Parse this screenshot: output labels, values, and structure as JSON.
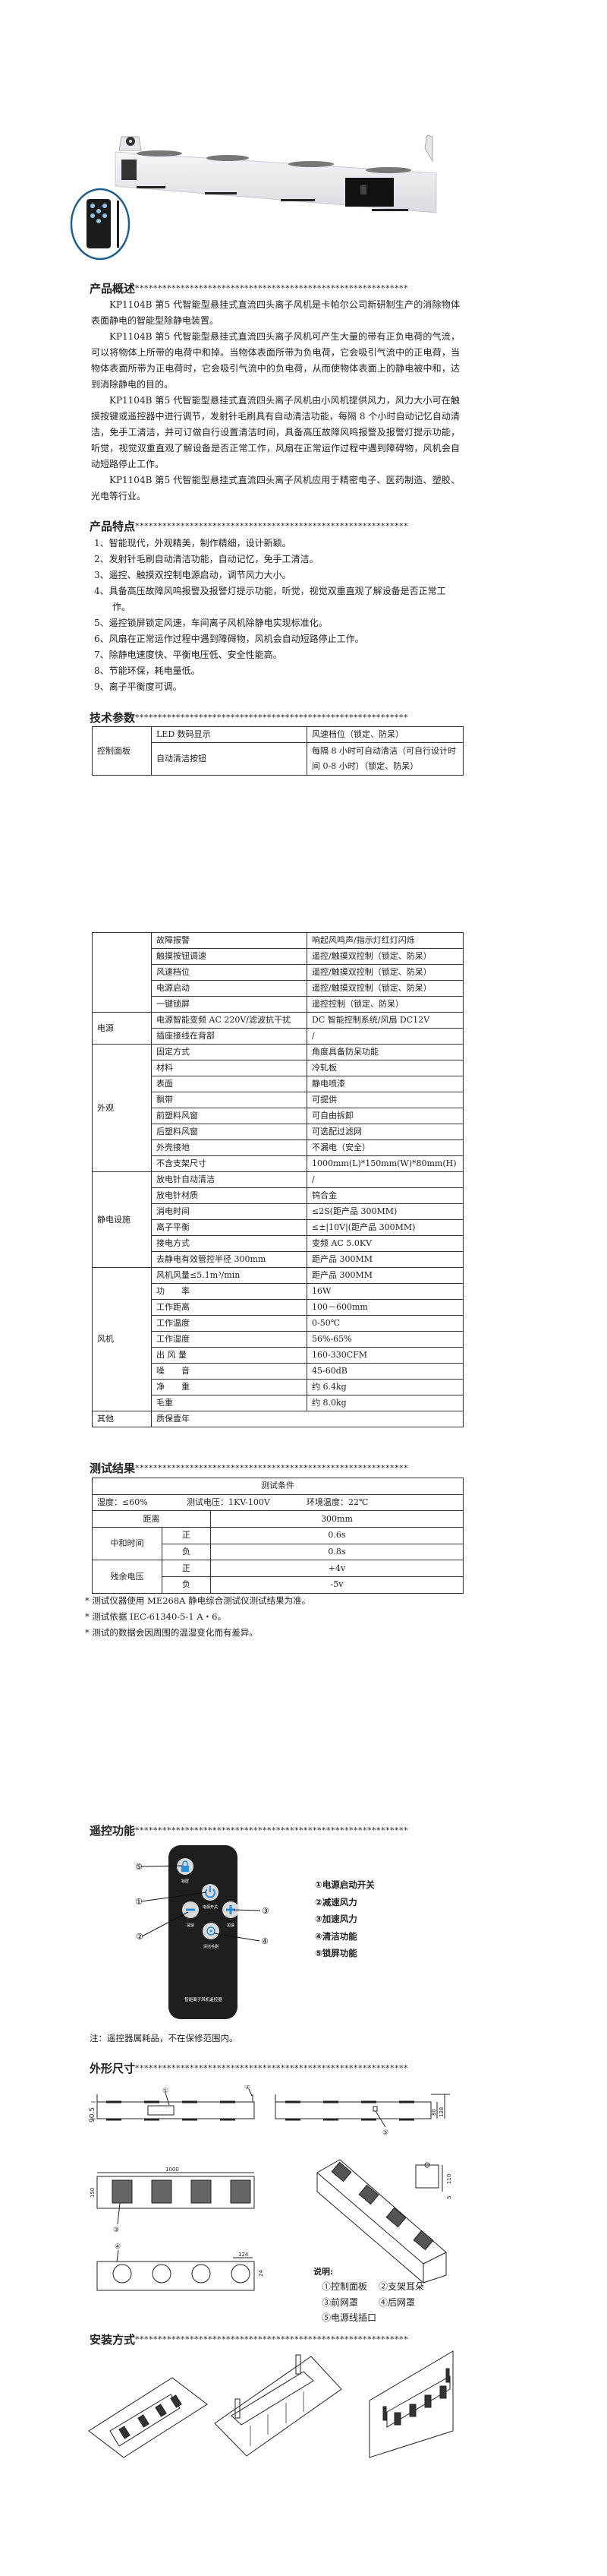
{
  "overview": {
    "title": "产品概述",
    "stars": "************************************************************",
    "paragraphs": [
      "KP1104B 第5 代智能型悬挂式直流四头离子风机是卡帕尔公司新研制生产的消除物体表面静电的智能型除静电装置。",
      "KP1104B 第5 代智能型悬挂式直流四头离子风机可产生大量的带有正负电荷的气流，可以将物体上所带的电荷中和掉。当物体表面所带为负电荷，它会吸引气流中的正电荷，当物体表面所带为正电荷时，它会吸引气流中的负电荷，从而使物体表面上的静电被中和，达到消除静电的目的。",
      "KP1104B 第5 代智能型悬挂式直流四头离子风机由小风机提供风力，风力大小可在触摸按键或遥控器中进行调节，发射针毛刷具有自动清洁功能，每隔 8 个小时自动记忆自动清洁，免手工清洁，并可订做自行设置清洁时间，具备高压故障风鸣报警及报警灯提示功能，听觉，视觉双重直观了解设备是否正常工作，风扇在正常运作过程中遇到障碍物，风机会自动短路停止工作。",
      "KP1104B 第5 代智能型悬挂式直流四头离子风机应用于精密电子、医药制造、塑胶、光电等行业。"
    ]
  },
  "features": {
    "title": "产品特点",
    "items": [
      "1、智能现代，外观精美，制作精细，设计新颖。",
      "2、发射针毛刷自动清洁功能，自动记忆，免手工清洁。",
      "3、遥控、触摸双控制电源启动，调节风力大小。",
      "4、具备高压故障风鸣报警及报警灯提示功能，听觉，视觉双重直观了解设备是否正常工作。",
      "5、遥控锁屏锁定风速，车间离子风机除静电实现标准化。",
      "6、风扇在正常运作过程中遇到障碍物，风机会自动短路停止工作。",
      "7、除静电速度快、平衡电压低、安全性能高。",
      "8、节能环保，耗电量低。",
      "9、离子平衡度可调。"
    ]
  },
  "specs": {
    "title": "技术参数",
    "table1": {
      "group": "控制面板",
      "rows": [
        [
          "LED 数码显示",
          "风速档位（锁定、防呆）"
        ],
        [
          "自动清洁按钮",
          "每隔 8 小时可自动清洁（可自行设计时间 0-8 小时）（锁定、防呆）"
        ]
      ]
    },
    "table2": [
      {
        "group": "",
        "rows": [
          [
            "故障报警",
            "响起风鸣声/指示灯红灯闪烁"
          ],
          [
            "触摸按钮调速",
            "遥控/触摸双控制（锁定、防呆）"
          ],
          [
            "风速档位",
            "遥控/触摸双控制（锁定、防呆）"
          ],
          [
            "电源启动",
            "遥控/触摸双控制（锁定、防呆）"
          ],
          [
            "一键锁屏",
            "遥控控制（锁定、防呆）"
          ]
        ]
      },
      {
        "group": "电源",
        "rows": [
          [
            "电源智能变频 AC 220V/滤波抗干扰",
            "DC 智能控制系统/风扇 DC12V"
          ],
          [
            "插座接线在背部",
            "/"
          ]
        ]
      },
      {
        "group": "外观",
        "rows": [
          [
            "固定方式",
            "角度具备防呆功能"
          ],
          [
            "材料",
            "冷轧板"
          ],
          [
            "表面",
            "静电喷漆"
          ],
          [
            "飘带",
            "可提供"
          ],
          [
            "前塑料风窗",
            "可自由拆卸"
          ],
          [
            "后塑料风窗",
            "可选配过滤网"
          ],
          [
            "外壳接地",
            "不漏电（安全）"
          ],
          [
            "不含支架尺寸",
            "1000mm(L)*150mm(W)*80mm(H)"
          ]
        ]
      },
      {
        "group": "静电设施",
        "rows": [
          [
            "放电针自动清洁",
            "/"
          ],
          [
            "放电针材质",
            "钨合金"
          ],
          [
            "消电时间",
            "≤2S(距产品 300MM)"
          ],
          [
            "离子平衡",
            "≤±|10V|(距产品 300MM)"
          ],
          [
            "接电方式",
            "变频 AC 5.0KV"
          ],
          [
            "去静电有效管控半径 300mm",
            "距产品 300MM"
          ]
        ]
      },
      {
        "group": "风机",
        "rows": [
          [
            "风机风量≤5.1m³/min",
            "距产品 300MM"
          ],
          [
            "功　　率",
            "16W"
          ],
          [
            "工作距离",
            "100－600mm"
          ],
          [
            "工作温度",
            "0-50℃"
          ],
          [
            "工作湿度",
            "56%-65%"
          ],
          [
            "出 风 量",
            "160-330CFM"
          ],
          [
            "噪　　音",
            "45-60dB"
          ],
          [
            "净　　重",
            "约 6.4kg"
          ],
          [
            "毛重",
            "约 8.0kg"
          ]
        ]
      }
    ],
    "other": {
      "group": "其他",
      "value": "质保壹年"
    }
  },
  "tests": {
    "title": "测试结果",
    "header": "测试条件",
    "conditions": [
      "湿度：≤60%",
      "测试电压：1KV-100V",
      "环境温度：22℃"
    ],
    "distance_label": "距离",
    "distance_value": "300mm",
    "groups": [
      {
        "label": "中和时间",
        "rows": [
          [
            "正",
            "0.6s"
          ],
          [
            "负",
            "0.8s"
          ]
        ]
      },
      {
        "label": "残余电压",
        "rows": [
          [
            "正",
            "+4v"
          ],
          [
            "负",
            "-5v"
          ]
        ]
      }
    ],
    "notes": [
      "* 测试仪器使用 ME268A 静电综合测试仪测试结果为准。",
      "* 测试依据 IEC-61340-5-1 A・6。",
      "* 测试的数据会因周围的温湿变化而有差异。"
    ]
  },
  "remote": {
    "title": "遥控功能",
    "buttons": {
      "lock": "锁屏",
      "power": "电源开关",
      "minus": "减速",
      "plus": "加速",
      "clean": "清洁毛刷"
    },
    "device_label": "智能离子风机遥控器",
    "callouts": [
      "①",
      "②",
      "③",
      "④",
      "⑤"
    ],
    "legend": [
      "①电源启动开关",
      "②减速风力",
      "③加速风力",
      "④清洁功能",
      "⑤锁屏功能"
    ],
    "note": "注：遥控器属耗品，不在保修范围内。",
    "accent": "#2a8fd8"
  },
  "dimensions": {
    "title": "外形尺寸",
    "dims": [
      "90.5",
      "80",
      "128",
      "1000",
      "150",
      "124",
      "24",
      "110",
      "5"
    ],
    "legend_title": "说明:",
    "legend": [
      "①控制面板",
      "②支架耳朵",
      "③前网罩",
      "④后网罩",
      "⑤电源线插口"
    ]
  },
  "install": {
    "title": "安装方式"
  }
}
